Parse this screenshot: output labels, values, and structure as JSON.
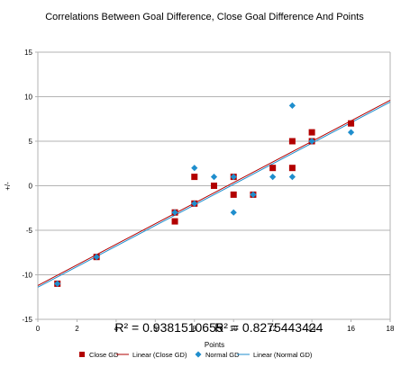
{
  "chart_data": {
    "type": "scatter",
    "title": "Correlations Between Goal Difference, Close Goal Difference And Points",
    "xlabel": "Points",
    "ylabel": "+/-",
    "xlim": [
      0,
      18
    ],
    "ylim": [
      -15,
      15
    ],
    "x_ticks": [
      0,
      2,
      4,
      6,
      8,
      10,
      12,
      14,
      16,
      18
    ],
    "y_ticks": [
      -15,
      -10,
      -5,
      0,
      5,
      10,
      15
    ],
    "grid": "horizontal",
    "legend_position": "bottom",
    "series": [
      {
        "name": "Close GD",
        "marker": "square",
        "color": "#b20000",
        "x": [
          1,
          3,
          7,
          7,
          8,
          8,
          9,
          10,
          10,
          11,
          12,
          13,
          13,
          14,
          14,
          16
        ],
        "y": [
          -11,
          -8,
          -3,
          -4,
          1,
          -2,
          0,
          1,
          -1,
          -1,
          2,
          5,
          2,
          6,
          5,
          7
        ]
      },
      {
        "name": "Normal GD",
        "marker": "diamond",
        "color": "#1f8ecd",
        "x": [
          1,
          3,
          7,
          8,
          8,
          9,
          10,
          10,
          11,
          12,
          13,
          13,
          14,
          16
        ],
        "y": [
          -11,
          -8,
          -3,
          2,
          -2,
          1,
          -3,
          1,
          -1,
          1,
          9,
          1,
          5,
          6
        ]
      }
    ],
    "trendlines": [
      {
        "name": "Linear (Close GD)",
        "color": "#b20000",
        "from": [
          0,
          -11.2
        ],
        "to": [
          18,
          9.6
        ]
      },
      {
        "name": "Linear (Normal GD)",
        "color": "#1f8ecd",
        "from": [
          0,
          -11.4
        ],
        "to": [
          18,
          9.4
        ]
      }
    ],
    "annotations": [
      {
        "text": "R² = 0.9381510655",
        "x": 6.7,
        "y": -16.4
      },
      {
        "text": "R² = 0.8275443424",
        "x": 11.8,
        "y": -16.4
      }
    ]
  }
}
